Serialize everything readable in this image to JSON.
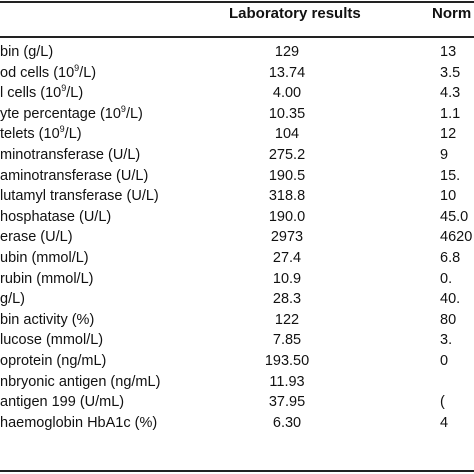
{
  "header": {
    "lab_label": "Laboratory results",
    "normal_label": "Norm"
  },
  "rows": [
    {
      "name": "bin (g/L)",
      "lab": "129",
      "normal": "13"
    },
    {
      "name": "od cells (10",
      "sup": "9",
      "name_tail": "/L)",
      "lab": "13.74",
      "normal": "3.5"
    },
    {
      "name": "l cells (10",
      "sup": "9",
      "name_tail": "/L)",
      "lab": "4.00",
      "normal": "4.3"
    },
    {
      "name": "yte percentage (10",
      "sup": "9",
      "name_tail": "/L)",
      "lab": "10.35",
      "normal": "1.1"
    },
    {
      "name": "telets (10",
      "sup": "9",
      "name_tail": "/L)",
      "lab": "104",
      "normal": "12"
    },
    {
      "name": "minotransferase (U/L)",
      "lab": "275.2",
      "normal": "9"
    },
    {
      "name": " aminotransferase (U/L)",
      "lab": "190.5",
      "normal": "15."
    },
    {
      "name": "lutamyl transferase (U/L)",
      "lab": "318.8",
      "normal": "10"
    },
    {
      "name": "hosphatase (U/L)",
      "lab": "190.0",
      "normal": "45.0"
    },
    {
      "name": "erase (U/L)",
      "lab": "2973",
      "normal": "4620"
    },
    {
      "name": "ubin (mmol/L)",
      "lab": "27.4",
      "normal": "6.8"
    },
    {
      "name": "rubin (mmol/L)",
      "lab": "10.9",
      "normal": "0."
    },
    {
      "name": "g/L)",
      "lab": "28.3",
      "normal": "40."
    },
    {
      "name": "bin activity (%)",
      "lab": "122",
      "normal": "80"
    },
    {
      "name": "lucose (mmol/L)",
      "lab": "7.85",
      "normal": "3."
    },
    {
      "name": "oprotein (ng/mL)",
      "lab": "193.50",
      "normal": "0"
    },
    {
      "name": "nbryonic antigen (ng/mL)",
      "lab": "11.93",
      "normal": ""
    },
    {
      "name": "antigen 199 (U/mL)",
      "lab": "37.95",
      "normal": "("
    },
    {
      "name": "haemoglobin HbA1c (%)",
      "lab": "6.30",
      "normal": "4"
    }
  ]
}
